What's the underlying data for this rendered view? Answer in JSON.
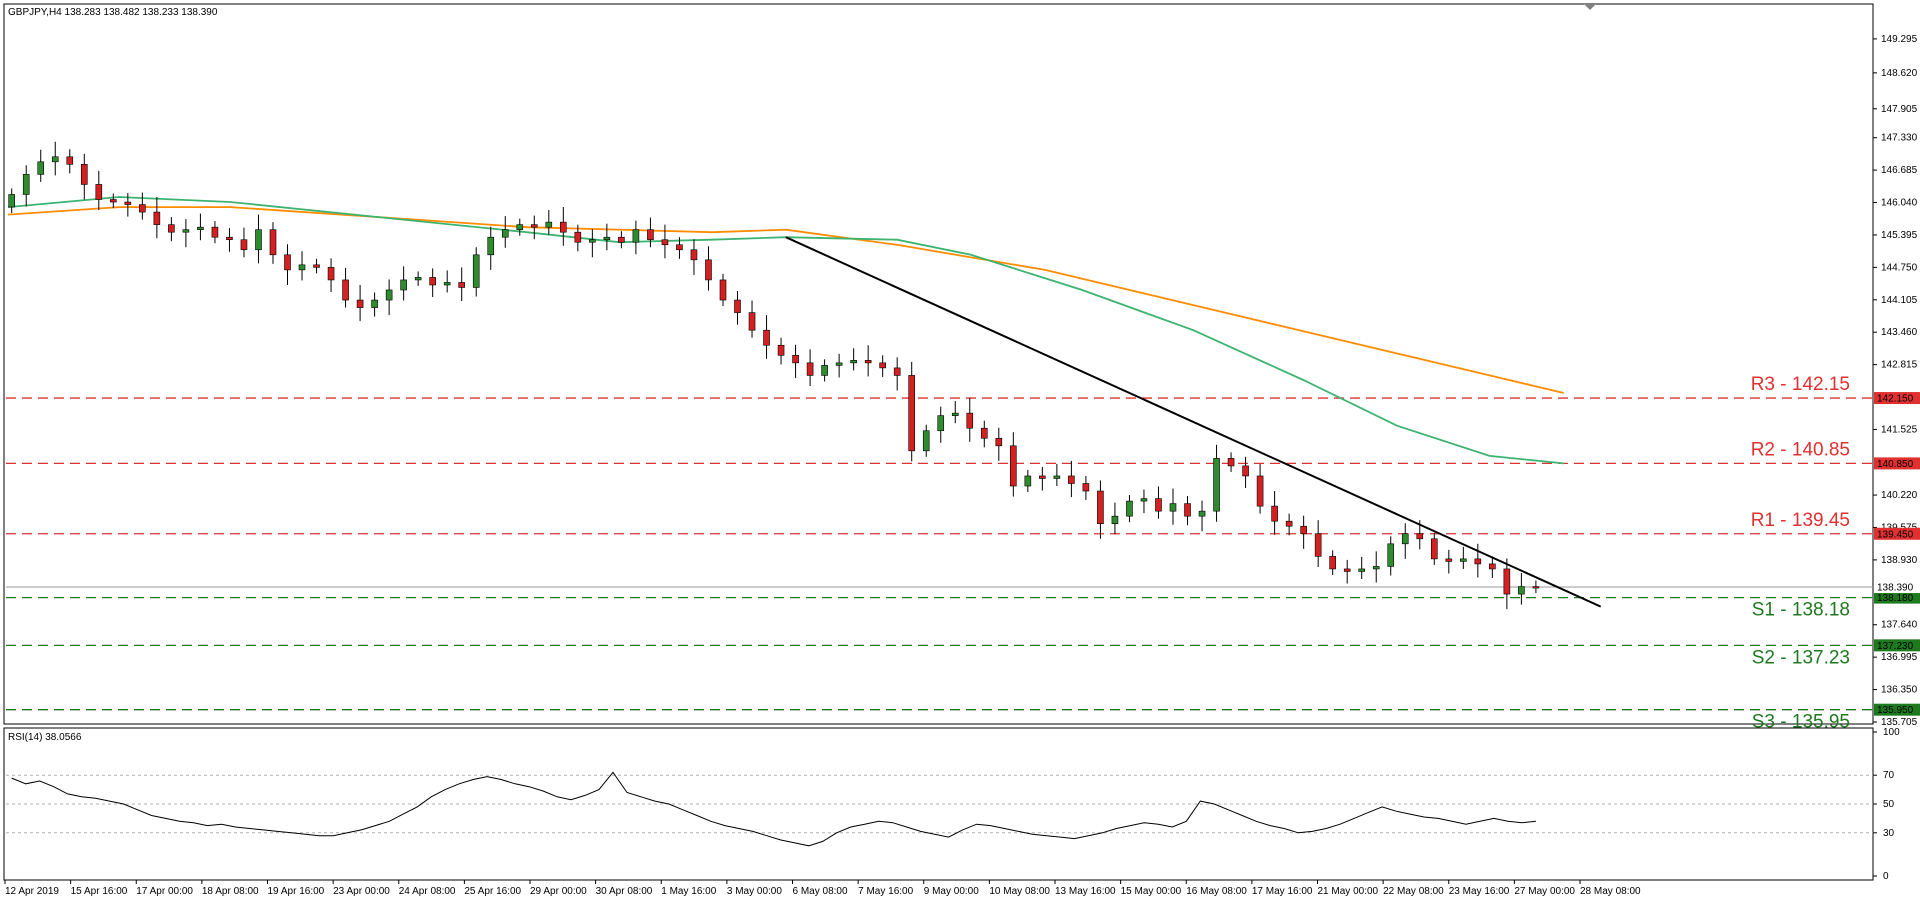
{
  "window": {
    "header": "GBPJPY,H4  138.283 138.482 138.233 138.390",
    "rsi_header": "RSI(14) 38.0566"
  },
  "colors": {
    "candle_up": "#2e8b2e",
    "candle_down": "#d42020",
    "ma_fast": "#3cb371",
    "ma_slow": "#ff8c00",
    "resistance": "#e03030",
    "support": "#1f7a1f",
    "trendline": "#000000",
    "rsi": "#000000"
  },
  "chart_data": {
    "type": "candlestick",
    "symbol": "GBPJPY",
    "timeframe": "H4",
    "ylim": [
      135.705,
      149.95
    ],
    "y_ticks": [
      "149.295",
      "148.620",
      "147.905",
      "147.330",
      "146.685",
      "146.040",
      "145.395",
      "144.750",
      "144.105",
      "143.460",
      "142.815",
      "141.525",
      "140.220",
      "139.575",
      "138.930",
      "137.640",
      "136.995",
      "136.350",
      "135.705"
    ],
    "x_labels": [
      "12 Apr 2019",
      "15 Apr 16:00",
      "17 Apr 00:00",
      "18 Apr 08:00",
      "19 Apr 16:00",
      "23 Apr 00:00",
      "24 Apr 08:00",
      "25 Apr 16:00",
      "29 Apr 00:00",
      "30 Apr 08:00",
      "1 May 16:00",
      "3 May 00:00",
      "6 May 08:00",
      "7 May 16:00",
      "9 May 00:00",
      "10 May 08:00",
      "13 May 16:00",
      "15 May 00:00",
      "16 May 08:00",
      "17 May 16:00",
      "21 May 00:00",
      "22 May 08:00",
      "23 May 16:00",
      "27 May 00:00",
      "28 May 08:00"
    ],
    "close_path": [
      146.2,
      146.6,
      146.85,
      146.95,
      146.8,
      146.4,
      146.1,
      146.05,
      146.0,
      145.85,
      145.6,
      145.45,
      145.5,
      145.55,
      145.35,
      145.3,
      145.1,
      145.5,
      145.0,
      144.7,
      144.8,
      144.75,
      144.5,
      144.1,
      143.95,
      144.1,
      144.3,
      144.5,
      144.55,
      144.4,
      144.45,
      144.35,
      145.0,
      145.35,
      145.5,
      145.6,
      145.55,
      145.65,
      145.45,
      145.25,
      145.3,
      145.35,
      145.25,
      145.5,
      145.3,
      145.2,
      145.1,
      144.9,
      144.5,
      144.1,
      143.85,
      143.5,
      143.2,
      143.0,
      142.85,
      142.6,
      142.8,
      142.85,
      142.9,
      142.85,
      142.75,
      142.6,
      141.1,
      141.5,
      141.8,
      141.85,
      141.55,
      141.35,
      141.2,
      140.4,
      140.6,
      140.55,
      140.6,
      140.45,
      140.3,
      139.65,
      139.8,
      140.1,
      140.15,
      139.9,
      140.05,
      139.8,
      139.9,
      140.95,
      140.8,
      140.6,
      140.0,
      139.7,
      139.6,
      139.45,
      139.0,
      138.75,
      138.7,
      138.75,
      138.8,
      139.25,
      139.45,
      139.35,
      138.95,
      138.9,
      138.95,
      138.85,
      138.75,
      138.25,
      138.4,
      138.39
    ],
    "ma_fast": [
      [
        0,
        145.95
      ],
      [
        0.06,
        146.15
      ],
      [
        0.12,
        146.05
      ],
      [
        0.2,
        145.75
      ],
      [
        0.28,
        145.45
      ],
      [
        0.33,
        145.25
      ],
      [
        0.38,
        145.3
      ],
      [
        0.42,
        145.35
      ],
      [
        0.48,
        145.3
      ],
      [
        0.52,
        145.0
      ],
      [
        0.58,
        144.3
      ],
      [
        0.64,
        143.5
      ],
      [
        0.7,
        142.5
      ],
      [
        0.75,
        141.6
      ],
      [
        0.8,
        141.0
      ],
      [
        0.84,
        140.85
      ]
    ],
    "ma_slow": [
      [
        0,
        145.8
      ],
      [
        0.06,
        145.95
      ],
      [
        0.12,
        145.95
      ],
      [
        0.2,
        145.75
      ],
      [
        0.28,
        145.55
      ],
      [
        0.38,
        145.45
      ],
      [
        0.42,
        145.5
      ],
      [
        0.48,
        145.2
      ],
      [
        0.56,
        144.7
      ],
      [
        0.64,
        144.0
      ],
      [
        0.72,
        143.3
      ],
      [
        0.8,
        142.6
      ],
      [
        0.84,
        142.25
      ]
    ],
    "trendline": [
      [
        0.42,
        145.35
      ],
      [
        0.86,
        138.0
      ]
    ],
    "levels": [
      {
        "name": "R3",
        "label": "R3 - 142.15",
        "value": 142.15,
        "tag": "142.150",
        "kind": "resistance"
      },
      {
        "name": "R2",
        "label": "R2 - 140.85",
        "value": 140.85,
        "tag": "140.850",
        "kind": "resistance"
      },
      {
        "name": "R1",
        "label": "R1 - 139.45",
        "value": 139.45,
        "tag": "139.450",
        "kind": "resistance"
      },
      {
        "name": "S1",
        "label": "S1 - 138.18",
        "value": 138.18,
        "tag": "138.180",
        "kind": "support"
      },
      {
        "name": "S2",
        "label": "S2 - 137.23",
        "value": 137.23,
        "tag": "137.230",
        "kind": "support"
      },
      {
        "name": "S3",
        "label": "S3 - 135.95",
        "value": 135.95,
        "tag": "135.950",
        "kind": "support"
      }
    ],
    "current_price": {
      "value": 138.39,
      "tag": "138.390"
    },
    "rsi": {
      "period": 14,
      "current": 38.0566,
      "ylim": [
        0,
        100
      ],
      "ticks": [
        "100",
        "70",
        "50",
        "30",
        "0"
      ],
      "levels": [
        70,
        50,
        30
      ],
      "values": [
        68,
        64,
        66,
        62,
        57,
        55,
        54,
        52,
        50,
        46,
        42,
        40,
        38,
        37,
        35,
        36,
        34,
        33,
        32,
        31,
        30,
        29,
        28,
        28,
        30,
        32,
        35,
        38,
        43,
        48,
        55,
        60,
        64,
        67,
        69,
        67,
        64,
        62,
        59,
        55,
        53,
        56,
        60,
        72,
        58,
        55,
        52,
        50,
        46,
        42,
        38,
        35,
        33,
        31,
        28,
        25,
        23,
        21,
        24,
        30,
        34,
        36,
        38,
        37,
        34,
        31,
        29,
        27,
        32,
        36,
        35,
        33,
        31,
        29,
        28,
        27,
        26,
        28,
        30,
        33,
        35,
        37,
        36,
        34,
        38,
        52,
        50,
        46,
        42,
        38,
        35,
        33,
        30,
        31,
        33,
        36,
        40,
        44,
        48,
        45,
        43,
        41,
        40,
        38,
        36,
        38,
        40,
        38,
        37,
        38
      ]
    }
  }
}
